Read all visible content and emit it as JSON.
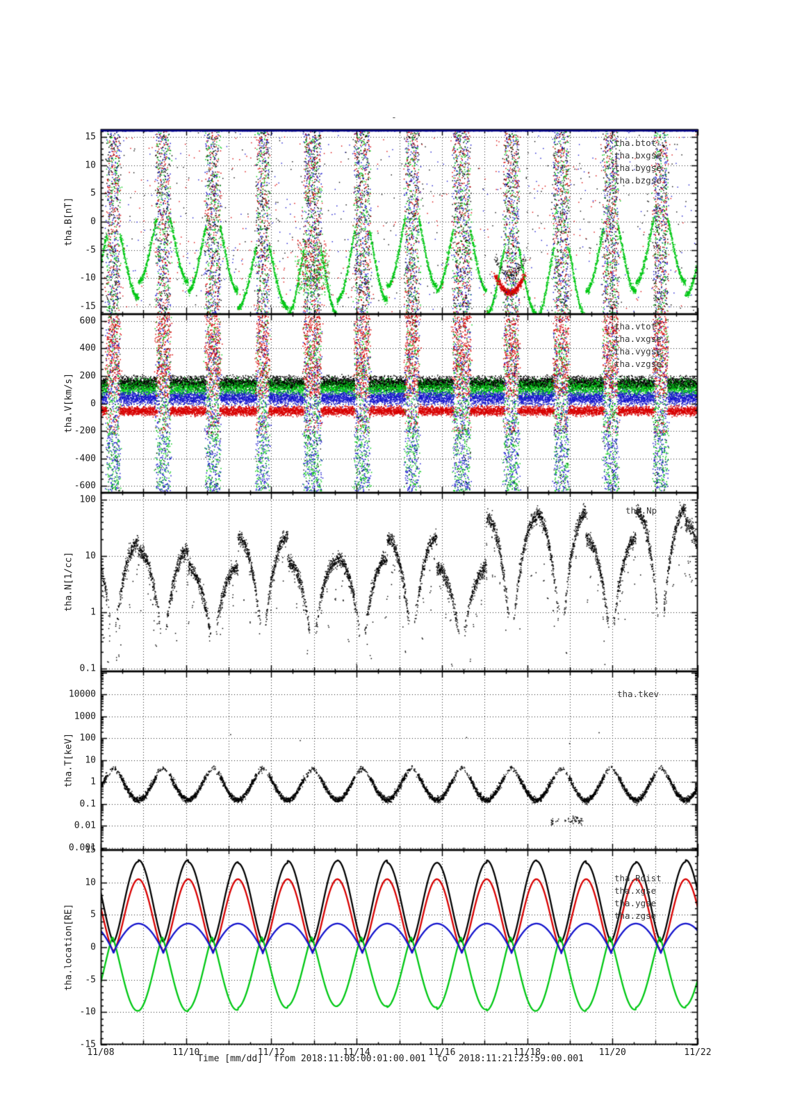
{
  "title": "-",
  "colors": {
    "black": "#000000",
    "red": "#d80000",
    "green": "#00c814",
    "blue": "#1414cd",
    "frame": "#000000",
    "grid": "#000000",
    "clip_top_panel1": "#000080",
    "legend_text": "#383838",
    "background": "#ffffff"
  },
  "x_axis": {
    "caption": "Time [mm/dd]  from 2018:11:08:00:01:00.001  to  2018:11:21:23:59:00.001",
    "start_time": "2018:11:08:00:01:00.001",
    "end_time": "2018:11:21:23:59:00.001",
    "total_days": 14,
    "tick_labels": [
      "11/08",
      "11/10",
      "11/12",
      "11/14",
      "11/16",
      "11/18",
      "11/20",
      "11/22"
    ],
    "label_days": [
      0,
      2,
      4,
      6,
      8,
      10,
      12,
      14
    ],
    "grid_step_days": 1,
    "minor_step_days": 0.5
  },
  "chart_data": {
    "type": "scatter",
    "grid": "dotted",
    "legend_position": "inside-top-right",
    "orbit_model": {
      "period_days": 1.1667,
      "first_perigee_day": 0.3,
      "apogee_re": 13.2,
      "perigee_re": 0.85,
      "orbits_in_window": 12
    },
    "panels": [
      {
        "id": "B",
        "ylabel": "tha.B[nT]",
        "yscale": "linear",
        "ylim": [
          -16.4,
          16.4
        ],
        "yticks": [
          {
            "v": 15,
            "label": "15"
          },
          {
            "v": 10,
            "label": "10"
          },
          {
            "v": 5,
            "label": "5"
          },
          {
            "v": 0,
            "label": "0"
          },
          {
            "v": -5,
            "label": "-5"
          },
          {
            "v": -10,
            "label": "-10"
          },
          {
            "v": -15,
            "label": "-15"
          }
        ],
        "minor_step": 1,
        "legend": [
          {
            "label": "tha.btot",
            "color": "black"
          },
          {
            "label": "tha.bxgse",
            "color": "red"
          },
          {
            "label": "tha.bygse",
            "color": "green"
          },
          {
            "label": "tha.bzgse",
            "color": "blue"
          }
        ],
        "description": "GSE magnetic field components; dense multicolor off-scale stripes near each perigee, smooth green bygse arcs between (-2 to -14 nT), btot clipped along top edge (navy band).",
        "sim": {
          "stripe_pts": 2,
          "quiet_green_base": -1.5,
          "quiet_green_amp": 11.5,
          "speckle_prob": 0.07,
          "red_feature_t": [
            9.25,
            9.95
          ],
          "red_feature_level": -9.5,
          "broad_zone_t": [
            4.6,
            5.35
          ]
        }
      },
      {
        "id": "V",
        "ylabel": "tha.V[km/s]",
        "yscale": "linear",
        "ylim": [
          -650,
          650
        ],
        "yticks": [
          {
            "v": 600,
            "label": "600"
          },
          {
            "v": 400,
            "label": "400"
          },
          {
            "v": 200,
            "label": "200"
          },
          {
            "v": 0,
            "label": "0"
          },
          {
            "v": -200,
            "label": "-200"
          },
          {
            "v": -400,
            "label": "-400"
          },
          {
            "v": -600,
            "label": "-600"
          }
        ],
        "minor_step": 50,
        "legend": [
          {
            "label": "tha.vtot",
            "color": "black"
          },
          {
            "label": "tha.vxgse",
            "color": "red"
          },
          {
            "label": "tha.vygse",
            "color": "green"
          },
          {
            "label": "tha.vzgse",
            "color": "blue"
          }
        ],
        "description": "Ion velocity; quiet intervals show layered clusters (black/green ~ +100..+200, blue ~ 0..+100, red ~ -100..0 km/s); perigee stripes span full range with red biased positive, blue/green biased negative.",
        "sim": {
          "clusters": {
            "black": [
              150,
              38
            ],
            "green": [
              115,
              48
            ],
            "blue": [
              40,
              42
            ],
            "red": [
              -55,
              28
            ]
          }
        }
      },
      {
        "id": "N",
        "ylabel": "tha.N[1/cc]",
        "yscale": "log",
        "ylim": [
          0.089,
          133
        ],
        "yticks": [
          {
            "v": 100,
            "label": "100"
          },
          {
            "v": 10,
            "label": "10"
          },
          {
            "v": 1,
            "label": "1"
          },
          {
            "v": 0.1,
            "label": "0.1"
          }
        ],
        "legend": [
          {
            "label": "tha.Np",
            "color": "black"
          }
        ],
        "description": "Proton density, log scale; repeating arcs: plateaus ~8-30 /cc mid-orbit (rising to 30-90 /cc after 11/18) with deep dips to ~0.1 /cc near perigees.",
        "sim": {
          "plateau_log_base": 1.05,
          "plateau_log_var": 0.3,
          "late_boost_orbit": 8,
          "late_boost": 0.55,
          "floor_log": -0.95
        }
      },
      {
        "id": "T",
        "ylabel": "tha.T[keV]",
        "yscale": "log",
        "ylim": [
          0.00079,
          112000
        ],
        "yticks": [
          {
            "v": 10000,
            "label": "10000"
          },
          {
            "v": 1000,
            "label": "1000"
          },
          {
            "v": 100,
            "label": "100"
          },
          {
            "v": 10,
            "label": "10"
          },
          {
            "v": 1,
            "label": "1"
          },
          {
            "v": 0.1,
            "label": "0.1"
          },
          {
            "v": 0.01,
            "label": "0.01"
          },
          {
            "v": 0.001,
            "label": "0.001"
          }
        ],
        "legend": [
          {
            "label": "tha.tkev",
            "color": "black"
          }
        ],
        "description": "Ion temperature, log scale; alternates between ~2-6 keV blobs near perigee passes and flat ~0.15-0.3 keV magnetosheath intervals; rare outliers near 100 keV and dips to ~0.01-0.03 keV around 11/18-11/19.",
        "sim": {
          "hi_log": 0.62,
          "swing": 1.45,
          "dip_t": [
            10.55,
            11.3
          ],
          "dip_log": -1.75,
          "outlier_prob": 0.0015
        }
      },
      {
        "id": "location",
        "ylabel": "tha.location[RE]",
        "yscale": "linear",
        "ylim": [
          -15,
          15
        ],
        "yticks": [
          {
            "v": 15,
            "label": "15"
          },
          {
            "v": 10,
            "label": "10"
          },
          {
            "v": 5,
            "label": "5"
          },
          {
            "v": 0,
            "label": "0"
          },
          {
            "v": -5,
            "label": "-5"
          },
          {
            "v": -10,
            "label": "-10"
          },
          {
            "v": -15,
            "label": "-15"
          }
        ],
        "minor_step": 1,
        "legend": [
          {
            "label": "tha.Rdist",
            "color": "black"
          },
          {
            "label": "tha.xgse",
            "color": "red"
          },
          {
            "label": "tha.ygse",
            "color": "green"
          },
          {
            "label": "tha.zgse",
            "color": "blue"
          }
        ],
        "description": "Spacecraft location in RE; ~12 orbits: Rdist arches 0.85-13.2, xgse arches to ~10.5, zgse gentle wave -1..+3.7, ygse deep negative lobes to ~ -9.5 with small +1.5 bumps at perigee.",
        "sim": {
          "rdist": [
            0.85,
            12.35,
            1.5
          ],
          "xgse": [
            -0.55,
            11.05,
            1.55
          ],
          "zgse": [
            -0.95,
            4.6,
            0.85
          ],
          "ygse": [
            1.55,
            11.0,
            1.25,
            0.02
          ]
        }
      }
    ]
  }
}
